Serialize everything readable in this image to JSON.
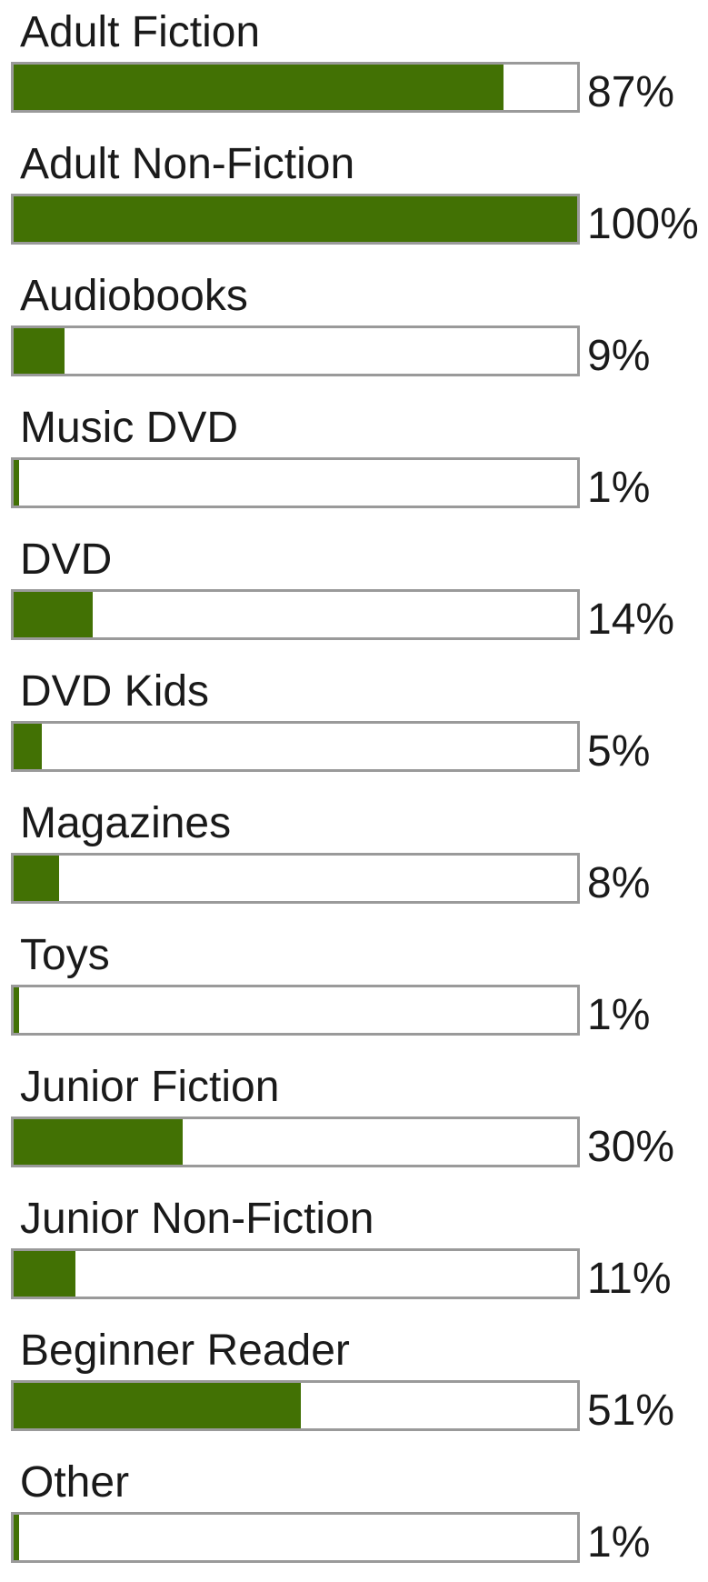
{
  "chart_data": {
    "type": "bar",
    "orientation": "horizontal",
    "categories": [
      "Adult Fiction",
      "Adult Non-Fiction",
      "Audiobooks",
      "Music DVD",
      "DVD",
      "DVD Kids",
      "Magazines",
      "Toys",
      "Junior Fiction",
      "Junior Non-Fiction",
      "Beginner Reader",
      "Other"
    ],
    "values": [
      87,
      100,
      9,
      1,
      14,
      5,
      8,
      1,
      30,
      11,
      51,
      1
    ],
    "value_labels": [
      "87%",
      "100%",
      "9%",
      "1%",
      "14%",
      "5%",
      "8%",
      "1%",
      "30%",
      "11%",
      "51%",
      "1%"
    ],
    "xlim": [
      0,
      100
    ],
    "grid": false,
    "colors": {
      "fill": "#427104",
      "track_border": "#9a9a9a",
      "track_background": "#ffffff"
    }
  }
}
